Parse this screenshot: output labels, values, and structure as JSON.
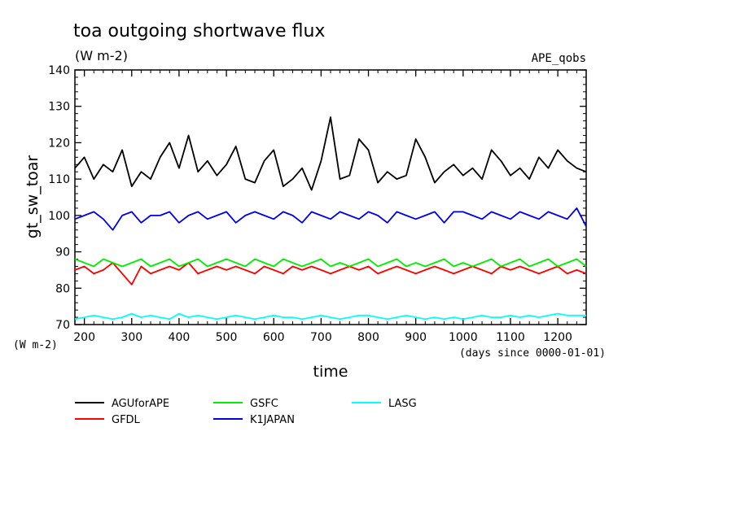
{
  "chart_data": {
    "type": "line",
    "title": "toa outgoing shortwave flux",
    "units": "(W m-2)",
    "run_label": "APE_qobs",
    "ylabel": "gt_sw_toar",
    "y_units_label": "(W m-2)",
    "xlabel": "time",
    "x_units_label": "(days since 0000-01-01)",
    "xlim": [
      180,
      1260
    ],
    "ylim": [
      70,
      140
    ],
    "x_ticks": [
      200,
      300,
      400,
      500,
      600,
      700,
      800,
      900,
      1000,
      1100,
      1200
    ],
    "y_ticks": [
      70,
      80,
      90,
      100,
      110,
      120,
      130,
      140
    ],
    "grid": false,
    "legend_position": "below",
    "x": [
      180,
      200,
      220,
      240,
      260,
      280,
      300,
      320,
      340,
      360,
      380,
      400,
      420,
      440,
      460,
      480,
      500,
      520,
      540,
      560,
      580,
      600,
      620,
      640,
      660,
      680,
      700,
      720,
      740,
      760,
      780,
      800,
      820,
      840,
      860,
      880,
      900,
      920,
      940,
      960,
      980,
      1000,
      1020,
      1040,
      1060,
      1080,
      1100,
      1120,
      1140,
      1160,
      1180,
      1200,
      1220,
      1240,
      1260
    ],
    "series": [
      {
        "name": "AGUforAPE",
        "color": "#000000",
        "values": [
          113,
          116,
          110,
          114,
          112,
          118,
          108,
          112,
          110,
          116,
          120,
          113,
          122,
          112,
          115,
          111,
          114,
          119,
          110,
          109,
          115,
          118,
          108,
          110,
          113,
          107,
          115,
          127,
          110,
          111,
          121,
          118,
          109,
          112,
          110,
          111,
          121,
          116,
          109,
          112,
          114,
          111,
          113,
          110,
          118,
          115,
          111,
          113,
          110,
          116,
          113,
          118,
          115,
          113,
          112
        ]
      },
      {
        "name": "GFDL",
        "color": "#ff0000",
        "values": [
          85,
          86,
          84,
          85,
          87,
          84,
          81,
          86,
          84,
          85,
          86,
          85,
          87,
          84,
          85,
          86,
          85,
          86,
          85,
          84,
          86,
          85,
          84,
          86,
          85,
          86,
          85,
          84,
          85,
          86,
          85,
          86,
          84,
          85,
          86,
          85,
          84,
          85,
          86,
          85,
          84,
          85,
          86,
          85,
          84,
          86,
          85,
          86,
          85,
          84,
          85,
          86,
          84,
          85,
          84
        ]
      },
      {
        "name": "GSFC",
        "color": "#00ee00",
        "values": [
          88,
          87,
          86,
          88,
          87,
          86,
          87,
          88,
          86,
          87,
          88,
          86,
          87,
          88,
          86,
          87,
          88,
          87,
          86,
          88,
          87,
          86,
          88,
          87,
          86,
          87,
          88,
          86,
          87,
          86,
          87,
          88,
          86,
          87,
          88,
          86,
          87,
          86,
          87,
          88,
          86,
          87,
          86,
          87,
          88,
          86,
          87,
          88,
          86,
          87,
          88,
          86,
          87,
          88,
          86
        ]
      },
      {
        "name": "K1JAPAN",
        "color": "#0000ee",
        "values": [
          99,
          100,
          101,
          99,
          96,
          100,
          101,
          98,
          100,
          100,
          101,
          98,
          100,
          101,
          99,
          100,
          101,
          98,
          100,
          101,
          100,
          99,
          101,
          100,
          98,
          101,
          100,
          99,
          101,
          100,
          99,
          101,
          100,
          98,
          101,
          100,
          99,
          100,
          101,
          98,
          101,
          101,
          100,
          99,
          101,
          100,
          99,
          101,
          100,
          99,
          101,
          100,
          99,
          102,
          97
        ]
      },
      {
        "name": "LASG",
        "color": "#00ffff",
        "values": [
          71.5,
          72,
          72.5,
          72,
          71.5,
          72,
          73,
          72,
          72.5,
          72,
          71.5,
          73,
          72,
          72.5,
          72,
          71.5,
          72,
          72.5,
          72,
          71.5,
          72,
          72.5,
          72,
          72,
          71.5,
          72,
          72.5,
          72,
          71.5,
          72,
          72.5,
          72.5,
          72,
          71.5,
          72,
          72.5,
          72,
          71.5,
          72,
          71.5,
          72,
          71.5,
          72,
          72.5,
          72,
          72,
          72.5,
          72,
          72.5,
          72,
          72.5,
          73,
          72.5,
          72.5,
          72.5
        ]
      }
    ]
  }
}
